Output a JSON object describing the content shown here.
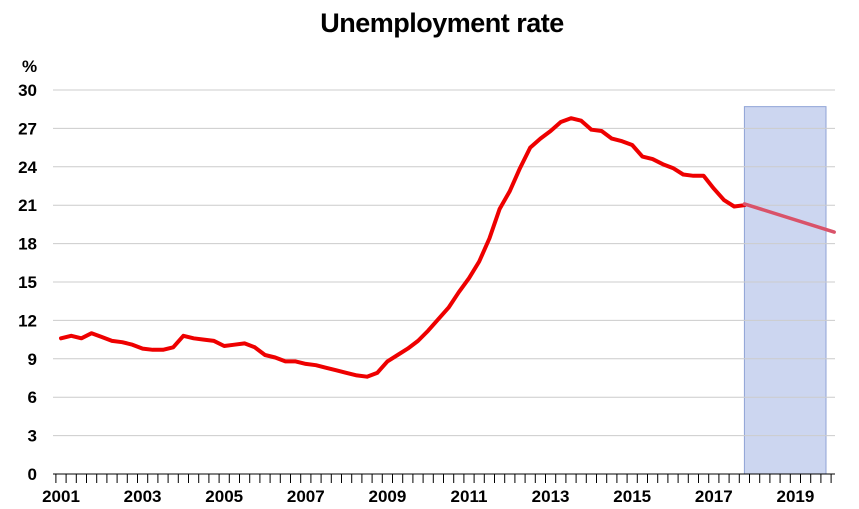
{
  "chart_data": {
    "type": "line",
    "title": "Unemployment rate",
    "ylabel": "%",
    "xlabel": "",
    "ylim": [
      0,
      30
    ],
    "xlim": [
      2001.0,
      2019.85
    ],
    "yticks": [
      "0",
      "3",
      "6",
      "9",
      "12",
      "15",
      "18",
      "21",
      "24",
      "27",
      "30"
    ],
    "xtick_labels": [
      "2001",
      "2003",
      "2005",
      "2007",
      "2009",
      "2011",
      "2013",
      "2015",
      "2017",
      "2019"
    ],
    "grid": "horizontal",
    "colors": {
      "actual": "#ee0000",
      "projection": "#d9536a",
      "shade": "#ccd6f0",
      "grid": "#cccccc"
    },
    "shaded_region": {
      "x_start": 2017.75,
      "x_end": 2019.75,
      "y_top": 28.7
    },
    "series": [
      {
        "role": "actual",
        "x": [
          2001.0,
          2001.25,
          2001.5,
          2001.75,
          2002.0,
          2002.25,
          2002.5,
          2002.75,
          2003.0,
          2003.25,
          2003.5,
          2003.75,
          2004.0,
          2004.25,
          2004.5,
          2004.75,
          2005.0,
          2005.25,
          2005.5,
          2005.75,
          2006.0,
          2006.25,
          2006.5,
          2006.75,
          2007.0,
          2007.25,
          2007.5,
          2007.75,
          2008.0,
          2008.25,
          2008.5,
          2008.75,
          2009.0,
          2009.25,
          2009.5,
          2009.75,
          2010.0,
          2010.25,
          2010.5,
          2010.75,
          2011.0,
          2011.25,
          2011.5,
          2011.75,
          2012.0,
          2012.25,
          2012.5,
          2012.75,
          2013.0,
          2013.25,
          2013.5,
          2013.75,
          2014.0,
          2014.25,
          2014.5,
          2014.75,
          2015.0,
          2015.25,
          2015.5,
          2015.75,
          2016.0,
          2016.25,
          2016.5,
          2016.75,
          2017.0,
          2017.25,
          2017.5,
          2017.75
        ],
        "values": [
          10.6,
          10.8,
          10.6,
          11.0,
          10.7,
          10.4,
          10.3,
          10.1,
          9.8,
          9.7,
          9.7,
          9.9,
          10.8,
          10.6,
          10.5,
          10.4,
          10.0,
          10.1,
          10.2,
          9.9,
          9.3,
          9.1,
          8.8,
          8.8,
          8.6,
          8.5,
          8.3,
          8.1,
          7.9,
          7.7,
          7.6,
          7.9,
          8.8,
          9.3,
          9.8,
          10.4,
          11.2,
          12.1,
          13.0,
          14.2,
          15.3,
          16.6,
          18.4,
          20.7,
          22.1,
          23.9,
          25.5,
          26.2,
          26.8,
          27.5,
          27.8,
          27.6,
          26.9,
          26.8,
          26.2,
          26.0,
          25.7,
          24.8,
          24.6,
          24.2,
          23.9,
          23.4,
          23.3,
          23.3,
          22.3,
          21.4,
          20.9,
          21.0
        ]
      },
      {
        "role": "projection",
        "x": [
          2017.75,
          2019.95
        ],
        "values": [
          21.1,
          18.9
        ]
      }
    ]
  }
}
